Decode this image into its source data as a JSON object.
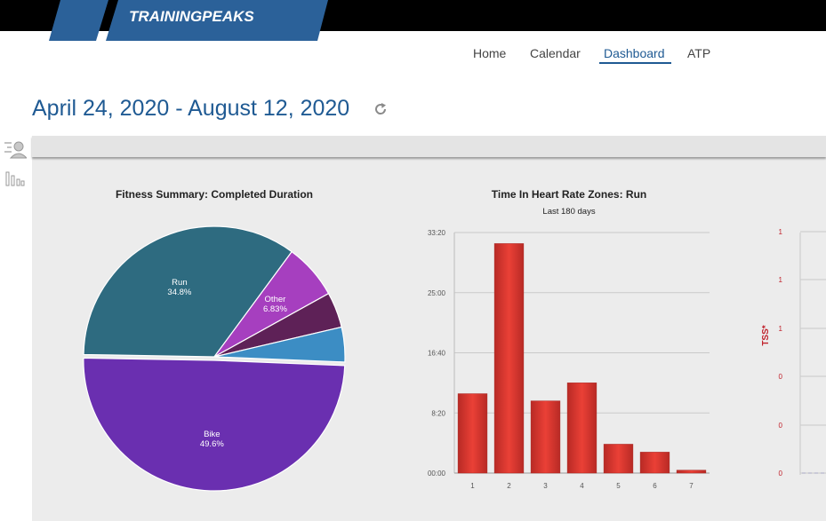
{
  "brand": {
    "name": "TRAININGPEAKS"
  },
  "nav": {
    "items": [
      {
        "label": "Home",
        "active": false
      },
      {
        "label": "Calendar",
        "active": false
      },
      {
        "label": "Dashboard",
        "active": true
      },
      {
        "label": "ATP",
        "active": false
      }
    ]
  },
  "header": {
    "date_range": "April 24, 2020 - August 12, 2020"
  },
  "icons": {
    "refresh": "refresh-icon",
    "athlete_list": "athlete-list-icon",
    "charts": "bar-chart-icon"
  },
  "colors": {
    "brand_blue": "#1f5a93",
    "logo_blue": "#2b6199",
    "bar_red": "#e2362f",
    "tss_red": "#c0212b"
  },
  "chart_data": [
    {
      "type": "pie",
      "title": "Fitness Summary: Completed Duration",
      "slices": [
        {
          "label": "Run",
          "value_label": "34.8%",
          "value": 34.8,
          "color": "#2e6b80"
        },
        {
          "label": "Other",
          "value_label": "6.83%",
          "value": 6.83,
          "color": "#a63fbf"
        },
        {
          "label": "",
          "value_label": "",
          "value": 4.4,
          "color": "#5e2157"
        },
        {
          "label": "",
          "value_label": "",
          "value": 4.3,
          "color": "#3c8dc4"
        },
        {
          "label": "Bike",
          "value_label": "49.6%",
          "value": 49.6,
          "color": "#6a2fb0"
        }
      ]
    },
    {
      "type": "bar",
      "title": "Time In Heart Rate Zones: Run",
      "subtitle": "Last 180 days",
      "categories": [
        "1",
        "2",
        "3",
        "4",
        "5",
        "6",
        "7"
      ],
      "values": [
        11.0,
        31.8,
        10.0,
        12.5,
        4.0,
        2.9,
        0.4
      ],
      "y_unit": "minutes",
      "yticks": [
        "00:00",
        "8:20",
        "16:40",
        "25:00",
        "33:20"
      ],
      "ylim": [
        0,
        33.33
      ],
      "grid": true
    },
    {
      "type": "line",
      "ylabel": "TSS*",
      "yticks": [
        "0",
        "0",
        "0",
        "1",
        "1",
        "1"
      ],
      "partial": true
    }
  ]
}
